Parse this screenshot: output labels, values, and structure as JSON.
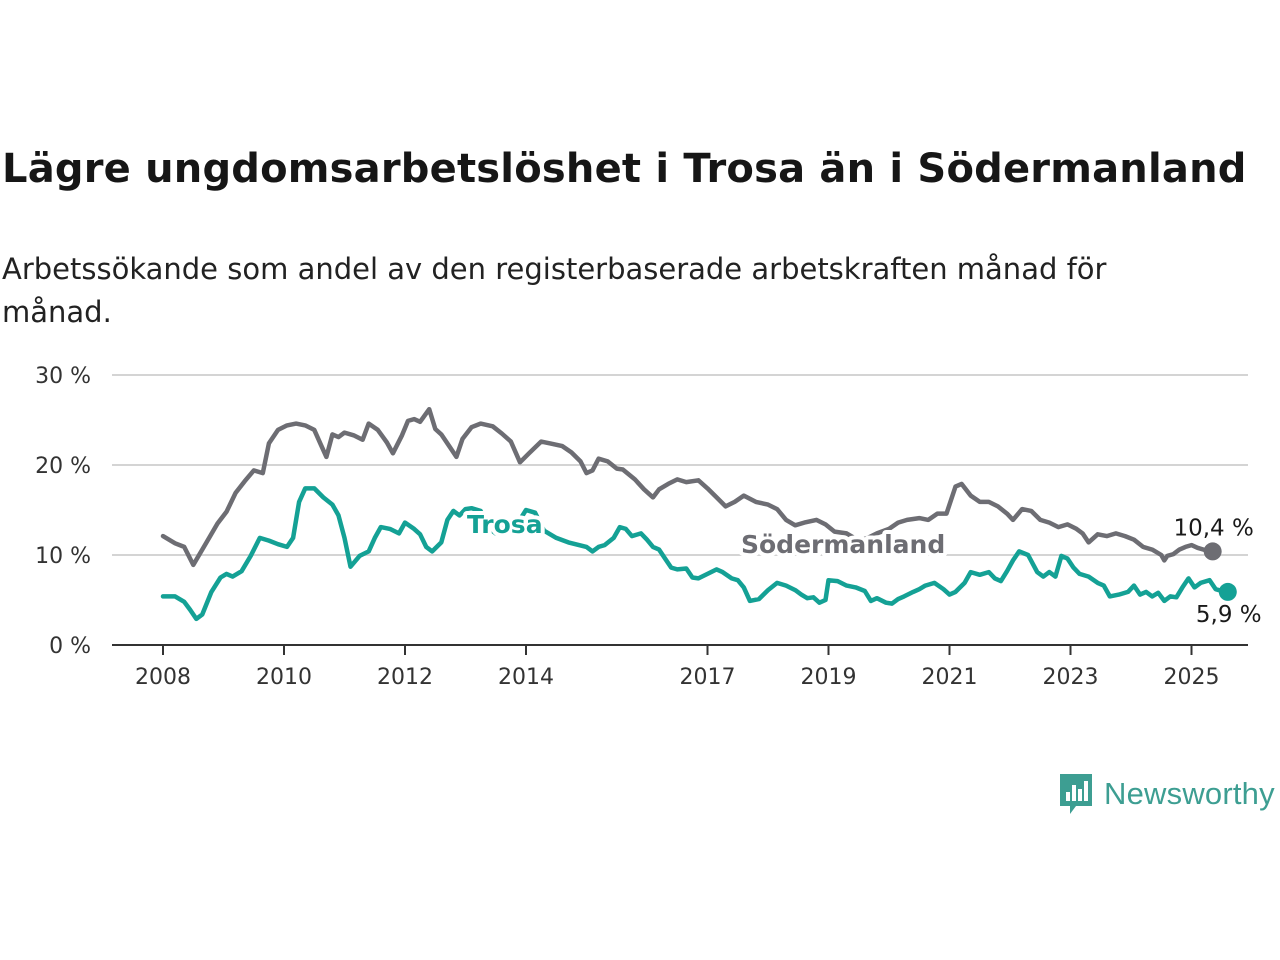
{
  "title": "Lägre ungdomsarbetslöshet i Trosa än i Södermanland",
  "subtitle": "Arbetssökande som andel av den registerbaserade arbetskraften månad för månad.",
  "brand": {
    "name": "Newsworthy",
    "icon": "newsworthy-logo-icon",
    "color": "#3d9e92"
  },
  "chart_data": {
    "type": "line",
    "y_ticks": [
      "0 %",
      "10 %",
      "20 %",
      "30 %"
    ],
    "ylim": [
      0,
      30
    ],
    "x_ticks": [
      "2008",
      "2010",
      "2012",
      "2014",
      "2017",
      "2019",
      "2021",
      "2023",
      "2025"
    ],
    "xlim": [
      2008,
      2025.2
    ],
    "grid": true,
    "series": [
      {
        "name": "Södermanland",
        "color": "#6d6d73",
        "end_label": "10,4 %",
        "points": [
          [
            2008.0,
            12.1
          ],
          [
            2008.2,
            11.3
          ],
          [
            2008.35,
            10.9
          ],
          [
            2008.5,
            8.9
          ],
          [
            2008.7,
            11.2
          ],
          [
            2008.9,
            13.5
          ],
          [
            2009.05,
            14.8
          ],
          [
            2009.2,
            16.9
          ],
          [
            2009.35,
            18.2
          ],
          [
            2009.5,
            19.4
          ],
          [
            2009.65,
            19.1
          ],
          [
            2009.75,
            22.4
          ],
          [
            2009.9,
            23.9
          ],
          [
            2010.05,
            24.4
          ],
          [
            2010.2,
            24.6
          ],
          [
            2010.35,
            24.4
          ],
          [
            2010.5,
            23.9
          ],
          [
            2010.6,
            22.4
          ],
          [
            2010.7,
            20.9
          ],
          [
            2010.8,
            23.4
          ],
          [
            2010.9,
            23.1
          ],
          [
            2011.0,
            23.6
          ],
          [
            2011.15,
            23.3
          ],
          [
            2011.3,
            22.8
          ],
          [
            2011.4,
            24.6
          ],
          [
            2011.55,
            23.9
          ],
          [
            2011.7,
            22.5
          ],
          [
            2011.8,
            21.3
          ],
          [
            2011.95,
            23.3
          ],
          [
            2012.05,
            24.9
          ],
          [
            2012.15,
            25.1
          ],
          [
            2012.25,
            24.8
          ],
          [
            2012.4,
            26.2
          ],
          [
            2012.5,
            24.0
          ],
          [
            2012.6,
            23.4
          ],
          [
            2012.75,
            21.9
          ],
          [
            2012.85,
            20.9
          ],
          [
            2012.95,
            22.9
          ],
          [
            2013.1,
            24.2
          ],
          [
            2013.25,
            24.6
          ],
          [
            2013.45,
            24.3
          ],
          [
            2013.6,
            23.5
          ],
          [
            2013.75,
            22.6
          ],
          [
            2013.9,
            20.3
          ],
          [
            2014.05,
            21.3
          ],
          [
            2014.25,
            22.6
          ],
          [
            2014.4,
            22.4
          ],
          [
            2014.6,
            22.1
          ],
          [
            2014.75,
            21.4
          ],
          [
            2014.9,
            20.4
          ],
          [
            2015.0,
            19.1
          ],
          [
            2015.1,
            19.4
          ],
          [
            2015.2,
            20.7
          ],
          [
            2015.35,
            20.4
          ],
          [
            2015.5,
            19.6
          ],
          [
            2015.6,
            19.5
          ],
          [
            2015.8,
            18.4
          ],
          [
            2015.95,
            17.3
          ],
          [
            2016.1,
            16.4
          ],
          [
            2016.2,
            17.3
          ],
          [
            2016.35,
            17.9
          ],
          [
            2016.5,
            18.4
          ],
          [
            2016.65,
            18.1
          ],
          [
            2016.85,
            18.3
          ],
          [
            2017.0,
            17.4
          ],
          [
            2017.15,
            16.4
          ],
          [
            2017.3,
            15.4
          ],
          [
            2017.45,
            15.9
          ],
          [
            2017.6,
            16.6
          ],
          [
            2017.8,
            15.9
          ],
          [
            2018.0,
            15.6
          ],
          [
            2018.15,
            15.1
          ],
          [
            2018.3,
            13.9
          ],
          [
            2018.45,
            13.3
          ],
          [
            2018.6,
            13.6
          ],
          [
            2018.8,
            13.9
          ],
          [
            2018.95,
            13.4
          ],
          [
            2019.1,
            12.6
          ],
          [
            2019.3,
            12.4
          ],
          [
            2019.5,
            11.6
          ],
          [
            2019.65,
            11.9
          ],
          [
            2019.8,
            12.4
          ],
          [
            2020.0,
            12.9
          ],
          [
            2020.15,
            13.6
          ],
          [
            2020.3,
            13.9
          ],
          [
            2020.5,
            14.1
          ],
          [
            2020.65,
            13.9
          ],
          [
            2020.8,
            14.6
          ],
          [
            2020.95,
            14.6
          ],
          [
            2021.1,
            17.6
          ],
          [
            2021.2,
            17.9
          ],
          [
            2021.35,
            16.6
          ],
          [
            2021.5,
            15.9
          ],
          [
            2021.65,
            15.9
          ],
          [
            2021.8,
            15.4
          ],
          [
            2021.95,
            14.6
          ],
          [
            2022.05,
            13.9
          ],
          [
            2022.2,
            15.1
          ],
          [
            2022.35,
            14.9
          ],
          [
            2022.5,
            13.9
          ],
          [
            2022.65,
            13.6
          ],
          [
            2022.8,
            13.1
          ],
          [
            2022.95,
            13.4
          ],
          [
            2023.1,
            12.9
          ],
          [
            2023.2,
            12.4
          ],
          [
            2023.3,
            11.4
          ],
          [
            2023.45,
            12.3
          ],
          [
            2023.6,
            12.1
          ],
          [
            2023.75,
            12.4
          ],
          [
            2023.9,
            12.1
          ],
          [
            2024.05,
            11.7
          ],
          [
            2024.2,
            10.9
          ],
          [
            2024.35,
            10.6
          ],
          [
            2024.5,
            10.0
          ],
          [
            2024.55,
            9.4
          ],
          [
            2024.6,
            9.9
          ],
          [
            2024.7,
            10.1
          ],
          [
            2024.8,
            10.6
          ],
          [
            2024.9,
            10.9
          ],
          [
            2025.0,
            11.1
          ],
          [
            2025.1,
            10.8
          ],
          [
            2025.2,
            10.6
          ],
          [
            2025.3,
            10.5
          ],
          [
            2025.35,
            10.4
          ]
        ]
      },
      {
        "name": "Trosa",
        "color": "#14a195",
        "end_label": "5,9 %",
        "points": [
          [
            2008.0,
            5.4
          ],
          [
            2008.2,
            5.4
          ],
          [
            2008.35,
            4.8
          ],
          [
            2008.45,
            3.9
          ],
          [
            2008.55,
            2.9
          ],
          [
            2008.65,
            3.4
          ],
          [
            2008.8,
            5.9
          ],
          [
            2008.95,
            7.5
          ],
          [
            2009.05,
            7.9
          ],
          [
            2009.15,
            7.6
          ],
          [
            2009.3,
            8.2
          ],
          [
            2009.45,
            9.9
          ],
          [
            2009.6,
            11.9
          ],
          [
            2009.75,
            11.6
          ],
          [
            2009.9,
            11.2
          ],
          [
            2010.05,
            10.9
          ],
          [
            2010.15,
            11.9
          ],
          [
            2010.25,
            15.9
          ],
          [
            2010.35,
            17.4
          ],
          [
            2010.5,
            17.4
          ],
          [
            2010.65,
            16.4
          ],
          [
            2010.8,
            15.6
          ],
          [
            2010.9,
            14.4
          ],
          [
            2011.0,
            11.9
          ],
          [
            2011.1,
            8.7
          ],
          [
            2011.25,
            9.9
          ],
          [
            2011.4,
            10.4
          ],
          [
            2011.5,
            11.9
          ],
          [
            2011.6,
            13.1
          ],
          [
            2011.75,
            12.9
          ],
          [
            2011.9,
            12.4
          ],
          [
            2012.0,
            13.6
          ],
          [
            2012.15,
            12.9
          ],
          [
            2012.25,
            12.3
          ],
          [
            2012.35,
            10.9
          ],
          [
            2012.45,
            10.4
          ],
          [
            2012.6,
            11.4
          ],
          [
            2012.7,
            13.9
          ],
          [
            2012.8,
            14.9
          ],
          [
            2012.9,
            14.4
          ],
          [
            2013.0,
            15.1
          ],
          [
            2013.1,
            15.2
          ],
          [
            2013.25,
            14.9
          ],
          [
            2013.4,
            12.9
          ],
          [
            2013.5,
            12.4
          ],
          [
            2013.6,
            13.4
          ],
          [
            2013.7,
            13.9
          ],
          [
            2013.85,
            13.4
          ],
          [
            2014.0,
            15.0
          ],
          [
            2014.15,
            14.7
          ],
          [
            2014.3,
            12.7
          ],
          [
            2014.5,
            11.9
          ],
          [
            2014.7,
            11.4
          ],
          [
            2015.0,
            10.9
          ],
          [
            2015.1,
            10.4
          ],
          [
            2015.2,
            10.9
          ],
          [
            2015.3,
            11.1
          ],
          [
            2015.45,
            11.9
          ],
          [
            2015.55,
            13.1
          ],
          [
            2015.65,
            12.9
          ],
          [
            2015.75,
            12.1
          ],
          [
            2015.9,
            12.4
          ],
          [
            2016.0,
            11.7
          ],
          [
            2016.1,
            10.9
          ],
          [
            2016.2,
            10.6
          ],
          [
            2016.3,
            9.6
          ],
          [
            2016.4,
            8.6
          ],
          [
            2016.5,
            8.4
          ],
          [
            2016.65,
            8.5
          ],
          [
            2016.75,
            7.5
          ],
          [
            2016.85,
            7.4
          ],
          [
            2017.0,
            7.9
          ],
          [
            2017.15,
            8.4
          ],
          [
            2017.25,
            8.1
          ],
          [
            2017.4,
            7.4
          ],
          [
            2017.5,
            7.2
          ],
          [
            2017.6,
            6.4
          ],
          [
            2017.7,
            4.9
          ],
          [
            2017.85,
            5.1
          ],
          [
            2018.0,
            6.1
          ],
          [
            2018.15,
            6.9
          ],
          [
            2018.3,
            6.6
          ],
          [
            2018.45,
            6.1
          ],
          [
            2018.55,
            5.6
          ],
          [
            2018.65,
            5.2
          ],
          [
            2018.75,
            5.3
          ],
          [
            2018.85,
            4.7
          ],
          [
            2018.95,
            5.0
          ],
          [
            2019.0,
            7.2
          ],
          [
            2019.15,
            7.1
          ],
          [
            2019.3,
            6.6
          ],
          [
            2019.45,
            6.4
          ],
          [
            2019.6,
            6.0
          ],
          [
            2019.7,
            4.9
          ],
          [
            2019.8,
            5.2
          ],
          [
            2019.95,
            4.7
          ],
          [
            2020.05,
            4.6
          ],
          [
            2020.15,
            5.1
          ],
          [
            2020.25,
            5.4
          ],
          [
            2020.4,
            5.9
          ],
          [
            2020.5,
            6.2
          ],
          [
            2020.6,
            6.6
          ],
          [
            2020.75,
            6.9
          ],
          [
            2020.9,
            6.2
          ],
          [
            2021.0,
            5.6
          ],
          [
            2021.1,
            5.9
          ],
          [
            2021.25,
            6.9
          ],
          [
            2021.35,
            8.1
          ],
          [
            2021.5,
            7.8
          ],
          [
            2021.65,
            8.1
          ],
          [
            2021.75,
            7.4
          ],
          [
            2021.85,
            7.1
          ],
          [
            2021.95,
            8.2
          ],
          [
            2022.05,
            9.4
          ],
          [
            2022.15,
            10.4
          ],
          [
            2022.3,
            10.0
          ],
          [
            2022.45,
            8.1
          ],
          [
            2022.55,
            7.6
          ],
          [
            2022.65,
            8.1
          ],
          [
            2022.75,
            7.6
          ],
          [
            2022.85,
            9.9
          ],
          [
            2022.95,
            9.6
          ],
          [
            2023.05,
            8.6
          ],
          [
            2023.15,
            7.9
          ],
          [
            2023.3,
            7.6
          ],
          [
            2023.45,
            6.9
          ],
          [
            2023.55,
            6.6
          ],
          [
            2023.65,
            5.4
          ],
          [
            2023.8,
            5.6
          ],
          [
            2023.95,
            5.9
          ],
          [
            2024.05,
            6.6
          ],
          [
            2024.15,
            5.6
          ],
          [
            2024.25,
            5.9
          ],
          [
            2024.35,
            5.4
          ],
          [
            2024.45,
            5.8
          ],
          [
            2024.55,
            4.9
          ],
          [
            2024.65,
            5.4
          ],
          [
            2024.75,
            5.3
          ],
          [
            2024.85,
            6.4
          ],
          [
            2024.95,
            7.4
          ],
          [
            2025.05,
            6.4
          ],
          [
            2025.15,
            6.9
          ],
          [
            2025.3,
            7.2
          ],
          [
            2025.4,
            6.2
          ],
          [
            2025.5,
            6.0
          ],
          [
            2025.6,
            5.9
          ]
        ]
      }
    ]
  }
}
